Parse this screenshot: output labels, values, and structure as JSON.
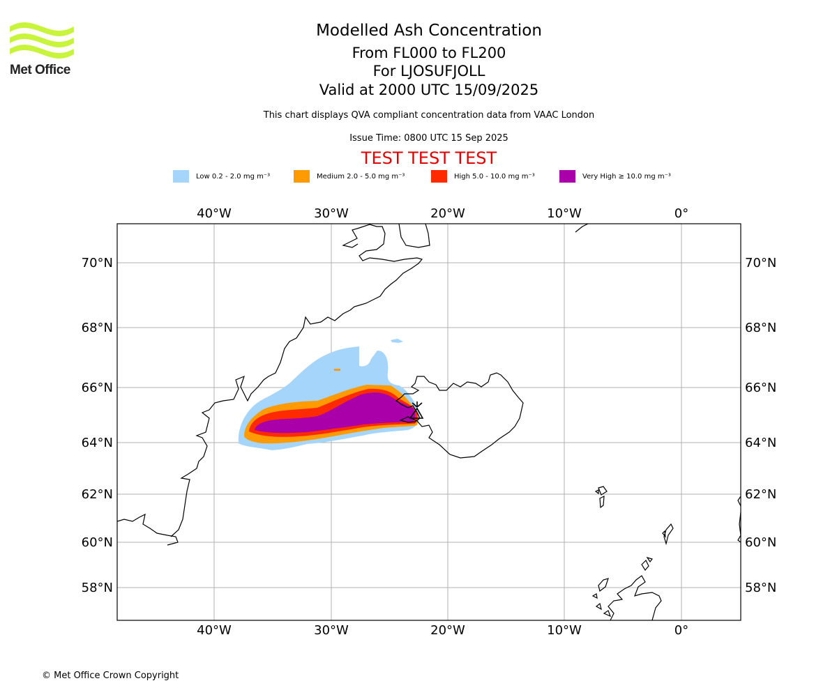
{
  "brand": {
    "name": "Met Office",
    "color": "#c8f53c"
  },
  "title": {
    "main": "Modelled Ash Concentration",
    "levels": "From FL000 to FL200",
    "volcano": "For LJOSUFJOLL",
    "valid": "Valid at 2000 UTC 15/09/2025",
    "description": "This chart displays QVA compliant concentration data from VAAC London",
    "issue": "Issue Time: 0800 UTC 15 Sep 2025",
    "test_banner": "TEST TEST TEST"
  },
  "legend": [
    {
      "label": "Low 0.2 - 2.0 mg m⁻³",
      "color": "#a6d5fb"
    },
    {
      "label": "Medium 2.0 - 5.0 mg m⁻³",
      "color": "#ff9a00"
    },
    {
      "label": "High 5.0 - 10.0 mg m⁻³",
      "color": "#ff2a00"
    },
    {
      "label": "Very High ≥ 10.0 mg m⁻³",
      "color": "#aa00aa"
    }
  ],
  "map": {
    "longitude_labels": [
      "40°W",
      "30°W",
      "20°W",
      "10°W",
      "0°"
    ],
    "latitude_labels": [
      "70°N",
      "68°N",
      "66°N",
      "64°N",
      "62°N",
      "60°N",
      "58°N"
    ],
    "volcano_marker": "volcano-symbol"
  },
  "footer": {
    "copyright": "© Met Office Crown Copyright"
  }
}
